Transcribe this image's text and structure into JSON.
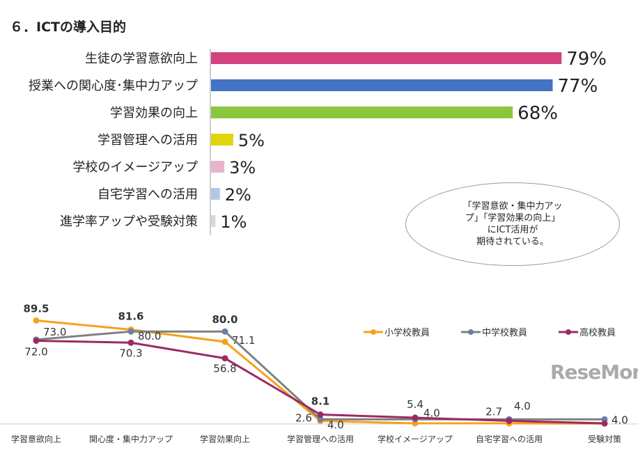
{
  "title": "６．ICTの導入目的",
  "callout": "「学習意欲・集中力アッ\nプ」「学習効果の向上」\nにICT活用が\n期待されている。",
  "logo": "ReseMom",
  "chart_data": [
    {
      "type": "bar",
      "orientation": "horizontal",
      "categories": [
        "生徒の学習意欲向上",
        "授業への関心度･集中力アップ",
        "学習効果の向上",
        "学習管理への活用",
        "学校のイメージアップ",
        "自宅学習への活用",
        "進学率アップや受験対策"
      ],
      "values": [
        79,
        77,
        68,
        5,
        3,
        2,
        1
      ],
      "labels": [
        "79%",
        "77%",
        "68%",
        "5%",
        "3%",
        "2%",
        "1%"
      ],
      "colors": [
        "#d4427e",
        "#4472c4",
        "#8cc63f",
        "#e0d50a",
        "#e8b4cc",
        "#b4c7e7",
        "#d9d9d9"
      ]
    },
    {
      "type": "line",
      "categories": [
        "学習意欲向上",
        "関心度・集中力アップ",
        "学習効果向上",
        "学習管理への活用",
        "学校イメージアップ",
        "自宅学習への活用",
        "受験対策"
      ],
      "series": [
        {
          "name": "小学校教員",
          "color": "#f5a21b",
          "values": [
            89.5,
            81.6,
            71.1,
            2.6,
            0.5,
            0.5,
            0.3
          ],
          "labels": [
            "89.5",
            "81.6",
            "71.1",
            "2.6",
            "",
            "",
            ""
          ]
        },
        {
          "name": "中学校教員",
          "color": "#808080",
          "values": [
            73.0,
            80.0,
            80.0,
            4.0,
            4.0,
            4.0,
            4.0
          ],
          "labels": [
            "73.0",
            "80.0",
            "80.0",
            "4.0",
            "4.0",
            "4.0",
            "4.0"
          ]
        },
        {
          "name": "高校教員",
          "color": "#9b2a64",
          "values": [
            72.0,
            70.3,
            56.8,
            8.1,
            5.4,
            2.7,
            0.5
          ],
          "labels": [
            "72.0",
            "70.3",
            "56.8",
            "8.1",
            "5.4",
            "2.7",
            ""
          ]
        }
      ],
      "legend": "top-right"
    }
  ]
}
